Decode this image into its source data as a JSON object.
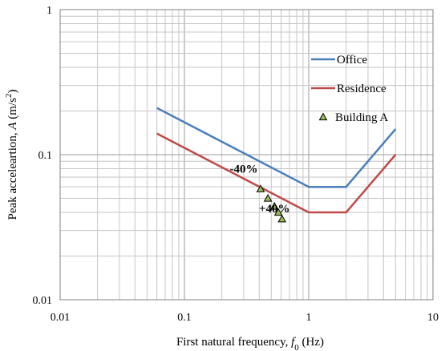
{
  "chart_data": {
    "type": "line",
    "x_scale": "log",
    "y_scale": "log",
    "xlim": [
      0.01,
      10
    ],
    "ylim": [
      0.01,
      1
    ],
    "x_ticks": [
      "0.01",
      "0.1",
      "1",
      "10"
    ],
    "y_ticks": [
      "0.01",
      "0.1",
      "1"
    ],
    "xlabel": "First natural frequency, f0 (Hz)",
    "xlabel_parts": {
      "pre": "First natural frequency, ",
      "sym": "f",
      "sub": "0",
      "post": " (Hz)"
    },
    "ylabel": "Peak acceleartion, A (m/s2)",
    "ylabel_parts": {
      "pre": "Peak acceleartion, ",
      "sym": "A",
      "post1": " (m/s",
      "sup": "2",
      "post2": ")"
    },
    "grid": true,
    "legend_position": "upper-right",
    "series": [
      {
        "name": "Office",
        "kind": "line",
        "color": "#4a7ebb",
        "x": [
          0.06,
          1,
          2,
          5
        ],
        "y": [
          0.21,
          0.06,
          0.06,
          0.15
        ]
      },
      {
        "name": "Residence",
        "kind": "line",
        "color": "#be4b48",
        "x": [
          0.06,
          1,
          2,
          5
        ],
        "y": [
          0.14,
          0.04,
          0.04,
          0.1
        ]
      },
      {
        "name": "Building A",
        "kind": "scatter",
        "marker": "triangle",
        "color": "#9bbb59",
        "x": [
          0.41,
          0.47,
          0.53,
          0.57,
          0.61
        ],
        "y": [
          0.058,
          0.05,
          0.044,
          0.04,
          0.036
        ]
      }
    ],
    "annotations": [
      {
        "text": "-40%",
        "x": 0.3,
        "y": 0.075
      },
      {
        "text": "+40%",
        "x": 0.53,
        "y": 0.04
      }
    ]
  }
}
